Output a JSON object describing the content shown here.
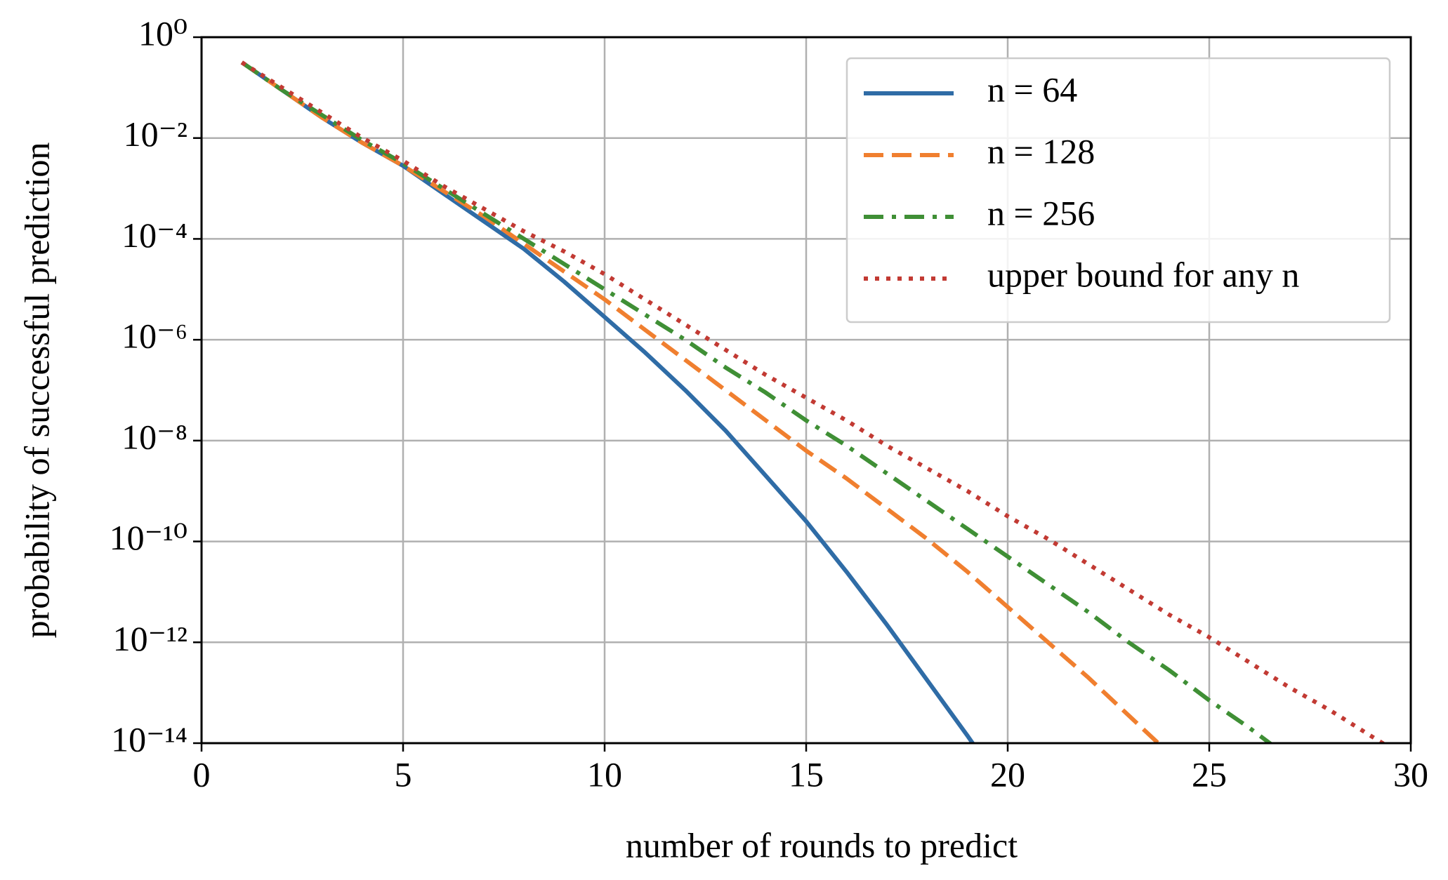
{
  "chart_data": {
    "type": "line",
    "xlabel": "number of rounds to predict",
    "ylabel": "probability of successful prediction",
    "log_y": true,
    "grid": true,
    "legend": "upper right",
    "xlim": [
      0,
      30
    ],
    "xticks": [
      0,
      5,
      10,
      15,
      20,
      25,
      30
    ],
    "ylim": [
      1e-14,
      1
    ],
    "yticks": [
      {
        "value": 1,
        "label": "10⁰"
      },
      {
        "value": 0.01,
        "label": "10⁻²"
      },
      {
        "value": 0.0001,
        "label": "10⁻⁴"
      },
      {
        "value": 1e-06,
        "label": "10⁻⁶"
      },
      {
        "value": 1e-08,
        "label": "10⁻⁸"
      },
      {
        "value": 1e-10,
        "label": "10⁻¹⁰"
      },
      {
        "value": 1e-12,
        "label": "10⁻¹²"
      },
      {
        "value": 1e-14,
        "label": "10⁻¹⁴"
      }
    ],
    "series": [
      {
        "name": "n = 64",
        "color": "#2f6ca6",
        "linestyle": "solid",
        "x": [
          1,
          2,
          3,
          4,
          5,
          6,
          7,
          8,
          9,
          10,
          11,
          12,
          13,
          14,
          15,
          16,
          17,
          18,
          19,
          20
        ],
        "values": [
          0.316,
          0.0891,
          0.0251,
          0.00794,
          0.00282,
          0.000794,
          0.000224,
          6.31e-05,
          1.41e-05,
          2.82e-06,
          5.62e-07,
          1e-07,
          1.58e-08,
          2e-09,
          2.51e-10,
          2.51e-11,
          2.24e-12,
          1.78e-13,
          1.41e-14,
          1e-15
        ]
      },
      {
        "name": "n = 128",
        "color": "#f07f2f",
        "linestyle": "dashed",
        "x": [
          1,
          2,
          3,
          4,
          5,
          6,
          7,
          8,
          9,
          10,
          11,
          12,
          13,
          14,
          15,
          16,
          17,
          18,
          19,
          20,
          21,
          22,
          23,
          24
        ],
        "values": [
          0.316,
          0.0891,
          0.0251,
          0.00794,
          0.00282,
          0.000891,
          0.000282,
          7.94e-05,
          2.24e-05,
          6.31e-06,
          1.58e-06,
          3.98e-07,
          1e-07,
          2.51e-08,
          6.31e-09,
          1.78e-09,
          4.47e-10,
          1.12e-10,
          2.51e-11,
          5.01e-12,
          1e-12,
          2e-13,
          3.55e-14,
          6.31e-15
        ]
      },
      {
        "name": "n = 256",
        "color": "#3f8f35",
        "linestyle": "dashdot",
        "x": [
          1,
          2,
          3,
          4,
          5,
          6,
          7,
          8,
          9,
          10,
          11,
          12,
          13,
          14,
          15,
          16,
          17,
          18,
          19,
          20,
          21,
          22,
          23,
          24,
          25,
          26,
          27
        ],
        "values": [
          0.316,
          0.0891,
          0.0282,
          0.00891,
          0.00316,
          0.001,
          0.000316,
          0.0001,
          3.16e-05,
          1e-05,
          3.16e-06,
          1e-06,
          2.82e-07,
          8.91e-08,
          2.51e-08,
          7.94e-09,
          2.24e-09,
          6.31e-10,
          1.78e-10,
          5.01e-11,
          1.41e-11,
          3.98e-12,
          1e-12,
          2.82e-13,
          7.08e-14,
          2e-14,
          5.01e-15
        ]
      },
      {
        "name": "upper bound for any n",
        "color": "#c23a33",
        "linestyle": "dotted",
        "x": [
          1,
          2,
          3,
          4,
          5,
          6,
          7,
          8,
          9,
          10,
          11,
          12,
          13,
          14,
          15,
          16,
          17,
          18,
          19,
          20,
          21,
          22,
          23,
          24,
          25,
          26,
          27,
          28,
          29,
          30
        ],
        "values": [
          0.316,
          0.1,
          0.0316,
          0.01,
          0.00355,
          0.00112,
          0.000398,
          0.000141,
          5.62e-05,
          2e-05,
          6.31e-06,
          2e-06,
          6.31e-07,
          2e-07,
          7.08e-08,
          2.51e-08,
          7.94e-09,
          2.82e-09,
          1e-09,
          3.16e-10,
          1.12e-10,
          3.55e-11,
          1.12e-11,
          3.55e-12,
          1.26e-12,
          3.98e-13,
          1.26e-13,
          4.47e-14,
          1.41e-14,
          4.47e-15
        ]
      }
    ]
  }
}
